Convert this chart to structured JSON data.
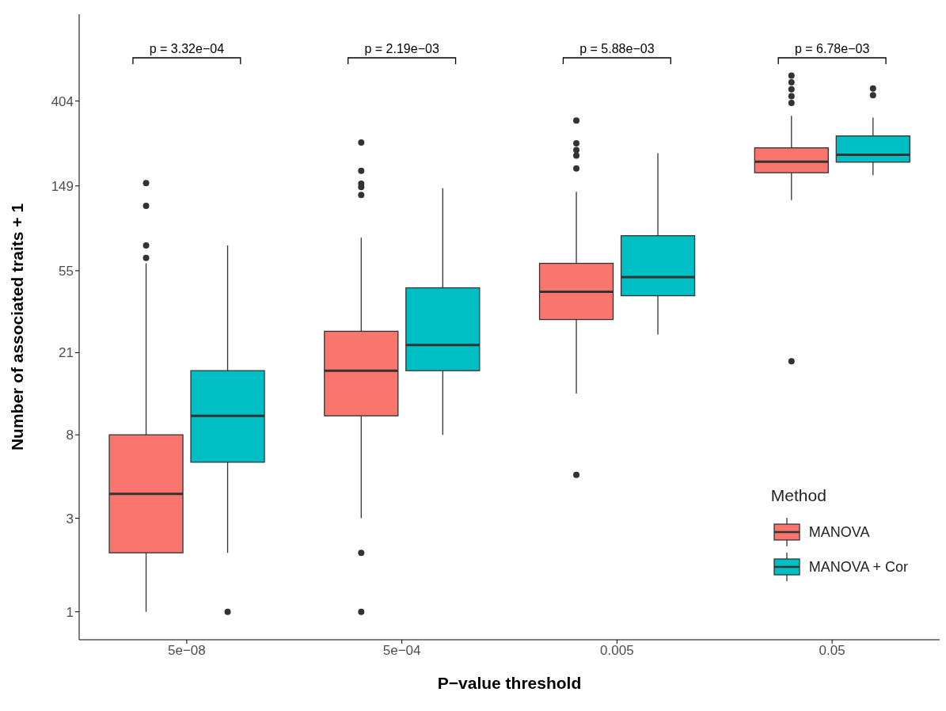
{
  "chart_data": {
    "type": "box",
    "xlabel": "P−value threshold",
    "ylabel": "Number of associated traits + 1",
    "legend_title": "Method",
    "categories": [
      "5e−08",
      "5e−04",
      "0.005",
      "0.05"
    ],
    "log": "y",
    "ylim": [
      0.72,
      1120
    ],
    "yticks": [
      1,
      3,
      8,
      21,
      55,
      149,
      404
    ],
    "legend": "bottom right",
    "series": [
      {
        "name": "MANOVA",
        "color": "#f8766d",
        "boxes": [
          {
            "low": 1,
            "q1": 2,
            "median": 4,
            "q3": 8,
            "high": 60,
            "outliers": [
              154,
              118,
              74,
              64
            ]
          },
          {
            "low": 3,
            "q1": 10,
            "median": 17,
            "q3": 27,
            "high": 81,
            "outliers": [
              248,
              178,
              153,
              147,
              134,
              2,
              1
            ]
          },
          {
            "low": 13,
            "q1": 31,
            "median": 43,
            "q3": 60,
            "high": 139,
            "outliers": [
              321,
              246,
              227,
              213,
              183,
              5
            ]
          },
          {
            "low": 126,
            "q1": 174,
            "median": 198,
            "q3": 233,
            "high": 340,
            "outliers": [
              545,
              503,
              464,
              428,
              395,
              19
            ]
          }
        ]
      },
      {
        "name": "MANOVA + Cor",
        "color": "#00bfc4",
        "boxes": [
          {
            "low": 2,
            "q1": 5.8,
            "median": 10,
            "q3": 17,
            "high": 74,
            "outliers": [
              1
            ]
          },
          {
            "low": 8,
            "q1": 17,
            "median": 23,
            "q3": 45,
            "high": 145
          },
          {
            "low": 26,
            "q1": 41,
            "median": 51,
            "q3": 83,
            "high": 219
          },
          {
            "low": 169,
            "q1": 197,
            "median": 215,
            "q3": 268,
            "high": 333,
            "outliers": [
              468,
              433
            ]
          }
        ]
      }
    ],
    "annotations": [
      "p = 3.32e−04",
      "p = 2.19e−03",
      "p = 5.88e−03",
      "p = 6.78e−03"
    ]
  }
}
